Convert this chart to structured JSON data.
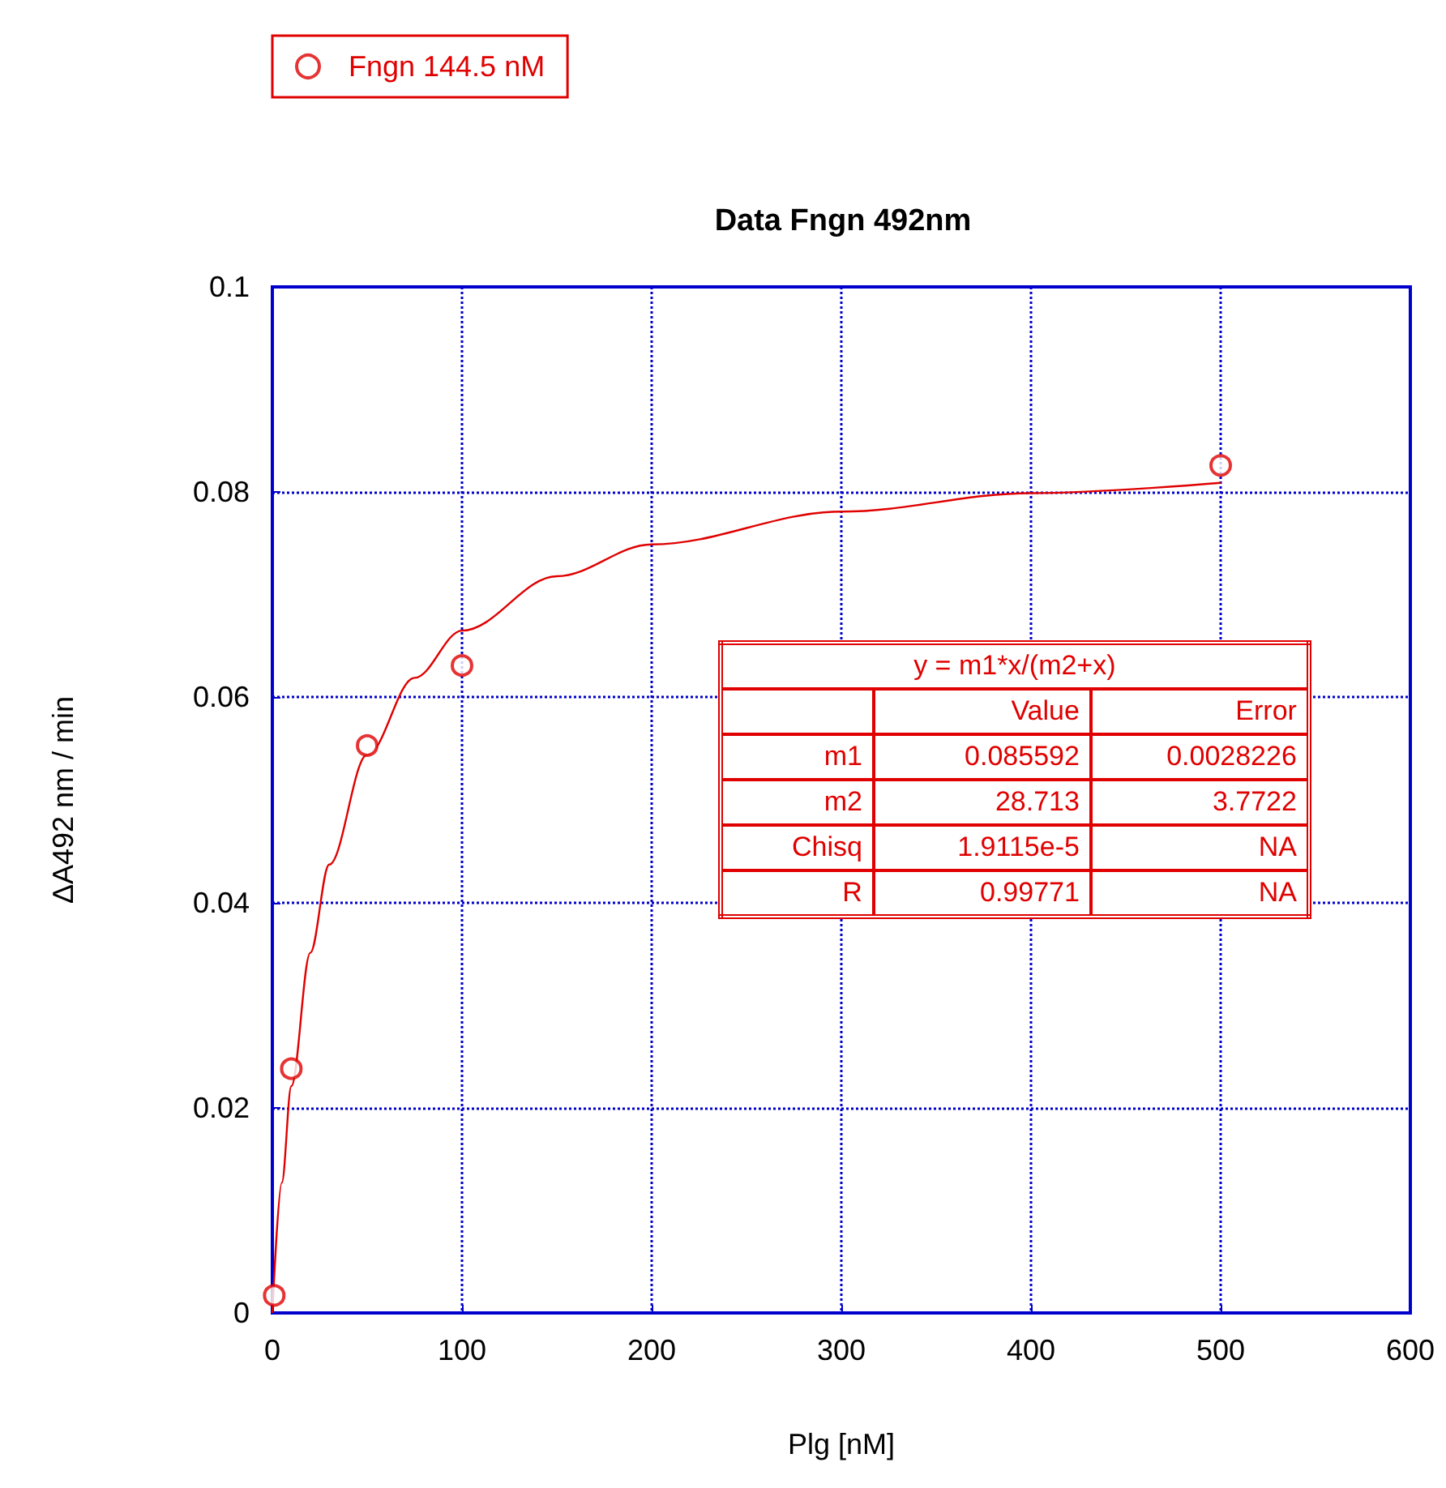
{
  "chart_data": {
    "type": "scatter",
    "title": "Data Fngn 492nm",
    "xlabel": "Plg [nM]",
    "ylabel": "ΔA492 nm / min",
    "xlim": [
      0,
      600
    ],
    "xticks": [
      0,
      100,
      200,
      300,
      400,
      500,
      600
    ],
    "ylim": [
      0,
      0.1
    ],
    "yticks": [
      0,
      0.02,
      0.04,
      0.06,
      0.08,
      0.1
    ],
    "grid": true,
    "legend": "top left",
    "series": [
      {
        "name": "Fngn 144.5 nM",
        "marker": "circle",
        "color": "#e00000",
        "x": [
          1,
          10,
          50,
          100,
          500
        ],
        "values": [
          0.0017,
          0.0238,
          0.0553,
          0.0631,
          0.0826
        ]
      },
      {
        "type": "line",
        "marker": "none",
        "color": "#e00000",
        "line_style": "solid",
        "x": [
          0,
          5,
          10,
          20,
          30,
          50,
          75,
          100,
          150,
          200,
          300,
          400,
          500
        ],
        "values": [
          0,
          0.0127,
          0.0221,
          0.0351,
          0.0437,
          0.0544,
          0.0619,
          0.0665,
          0.0718,
          0.0749,
          0.0781,
          0.0799,
          0.0809
        ]
      }
    ],
    "annotations": [
      "y = m1*x/(m2+x)",
      "Value",
      "Error",
      "m1",
      "0.085592",
      "0.0028226",
      "m2",
      "28.713",
      "3.7722",
      "Chisq",
      "1.9115e-5",
      "NA",
      "R",
      "0.99771",
      "NA"
    ]
  }
}
